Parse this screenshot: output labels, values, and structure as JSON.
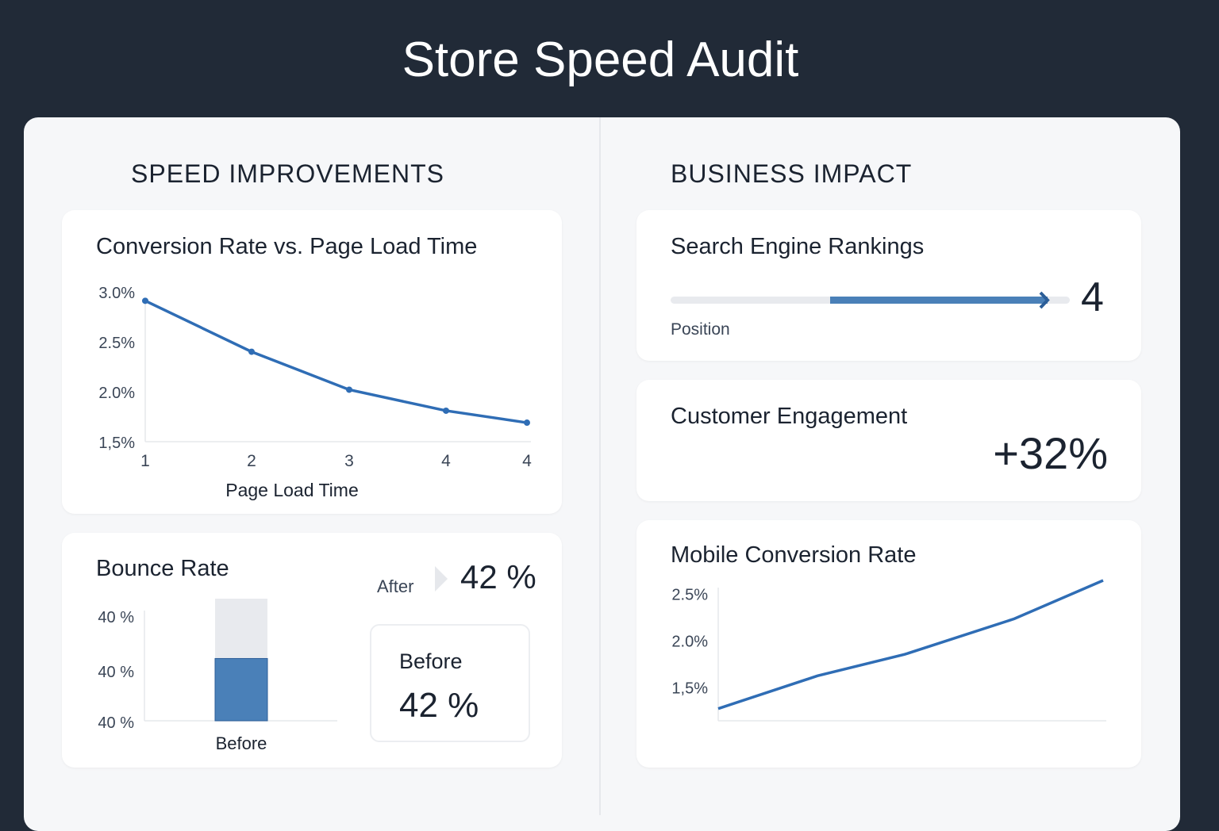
{
  "header": {
    "title": "Store Speed Audit"
  },
  "left": {
    "section_title": "SPEED IMPROVEMENTS"
  },
  "right": {
    "section_title": "BUSINESS IMPACT"
  },
  "colors": {
    "background": "#212a37",
    "panel": "#f6f7f9",
    "accent": "#2f6db5",
    "bar": "#4a80b8",
    "track": "#e8eaee"
  },
  "chart_data": [
    {
      "type": "line",
      "title": "Conversion Rate vs. Page Load Time",
      "xlabel": "Page Load Time",
      "ylabel": "",
      "x_tick_labels": [
        "1",
        "2",
        "3",
        "4",
        "4"
      ],
      "y_tick_labels": [
        "3.0%",
        "2.5%",
        "2.0%",
        "1,5%"
      ],
      "values": [
        2.91,
        2.4,
        2.02,
        1.81,
        1.69
      ],
      "ylim": [
        1.5,
        3.0
      ],
      "markers": true,
      "grid": false
    },
    {
      "type": "bar",
      "title": "Bounce Rate",
      "categories": [
        "Before"
      ],
      "y_tick_labels": [
        "40 %",
        "40 %",
        "40 %"
      ],
      "fill_fraction": 0.51,
      "after_label": "After",
      "after_value": "42 %",
      "before_label": "Before",
      "before_value": "42 %"
    },
    {
      "type": "line",
      "title": "Mobile Conversion Rate",
      "y_tick_labels": [
        "2.5%",
        "2.0%",
        "1,5%"
      ],
      "values": [
        1.27,
        1.62,
        1.85,
        2.23,
        2.64
      ],
      "ylim": [
        1.14,
        2.5
      ],
      "markers": false,
      "grid": false
    }
  ],
  "rankings": {
    "title": "Search Engine Rankings",
    "label": "Position",
    "value": "4",
    "progress_from": 0.4,
    "progress_to": 0.95
  },
  "engagement": {
    "title": "Customer Engagement",
    "value": "+32%"
  }
}
